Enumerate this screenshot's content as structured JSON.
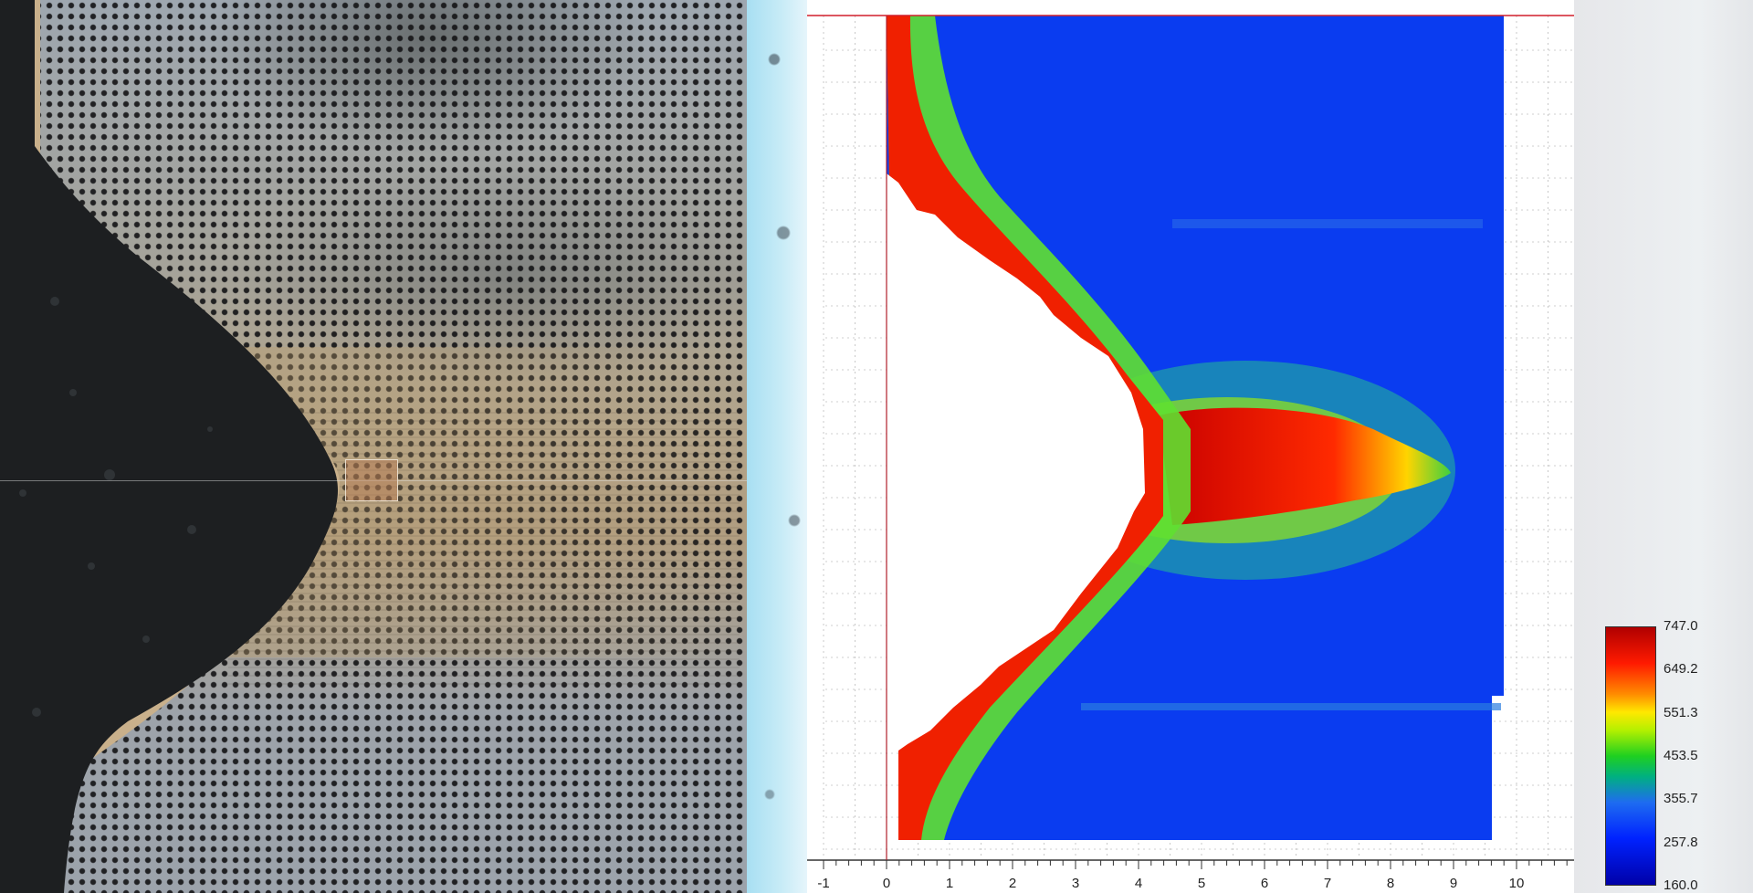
{
  "micrograph": {
    "description_icon": "microscope-image"
  },
  "chart_data": {
    "type": "heatmap",
    "colormap": [
      "#b00000",
      "#ff1a00",
      "#ffe800",
      "#1fd020",
      "#1e6cf0",
      "#0000a8"
    ],
    "colorbar_ticks": [
      "747.0",
      "649.2",
      "551.3",
      "453.5",
      "355.7",
      "257.8",
      "160.0"
    ],
    "value_range": [
      160.0,
      747.0
    ],
    "x_ticks": [
      "-1",
      "0",
      "1",
      "2",
      "3",
      "4",
      "5",
      "6",
      "7",
      "8",
      "9",
      "10"
    ],
    "xlim": [
      -1,
      10.9
    ],
    "grid": true,
    "legend_placement": "bottom-right",
    "boundary_profile": [
      [
        0.0,
        0.0
      ],
      [
        0.0,
        0.19
      ],
      [
        0.5,
        0.26
      ],
      [
        1.5,
        0.31
      ],
      [
        3.2,
        0.36
      ],
      [
        4.3,
        0.47
      ],
      [
        4.4,
        0.56
      ],
      [
        3.6,
        0.65
      ],
      [
        2.4,
        0.74
      ],
      [
        1.2,
        0.8
      ],
      [
        0.2,
        0.84
      ],
      [
        0.2,
        1.0
      ]
    ],
    "hotspot": {
      "x_range": [
        4.4,
        8.9
      ],
      "peak_x": 8.9,
      "peak_value": 747.0
    }
  }
}
